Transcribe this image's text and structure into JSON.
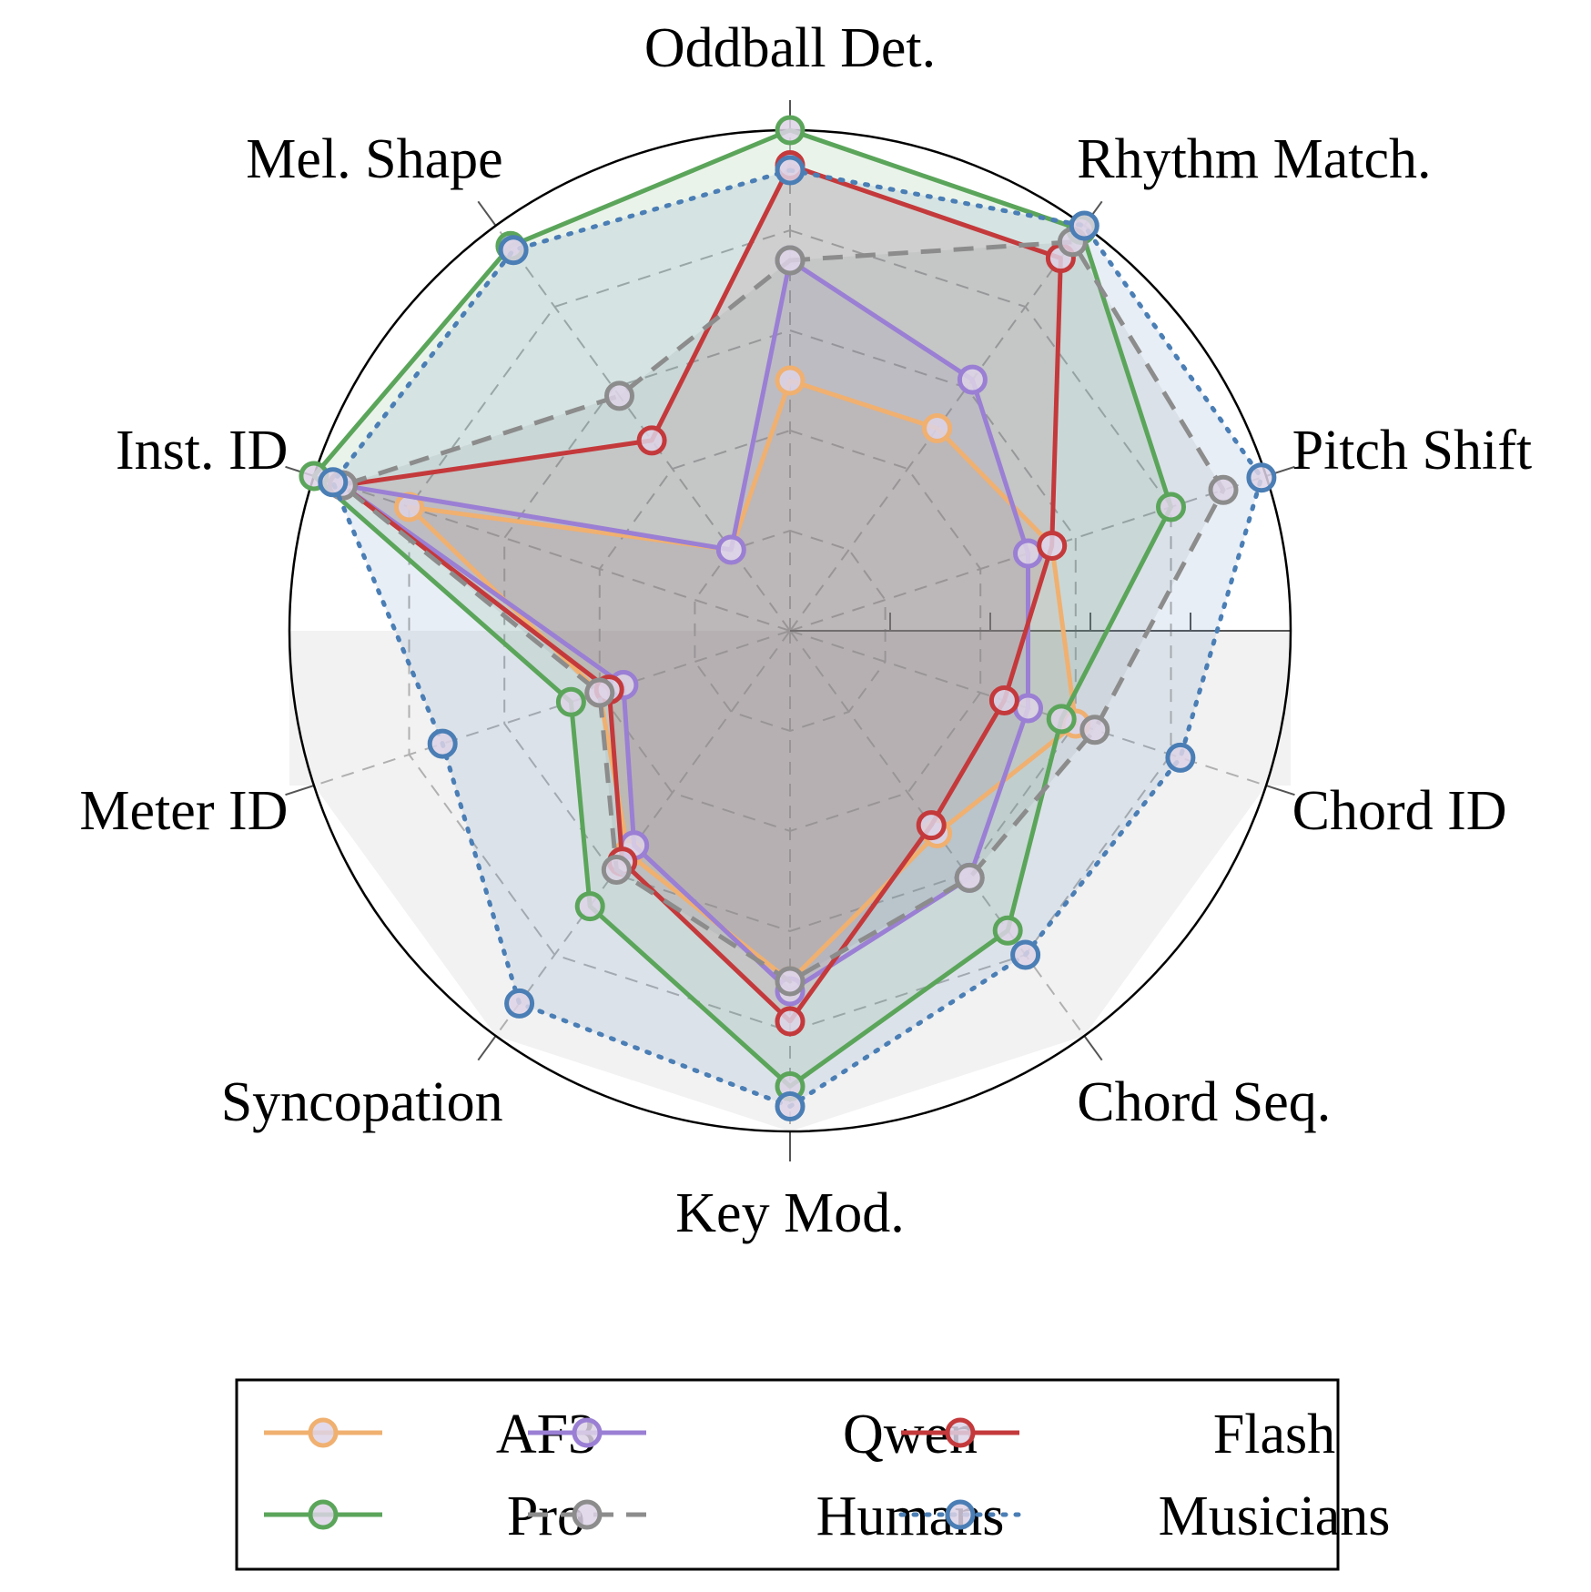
{
  "chart_data": {
    "type": "radar",
    "categories": [
      "Oddball Det.",
      "Rhythm Match.",
      "Pitch Shift",
      "Chord ID",
      "Chord Seq.",
      "Key Mod.",
      "Syncopation",
      "Meter ID",
      "Inst. ID",
      "Mel. Shape"
    ],
    "rlim": [
      0,
      1
    ],
    "grid": true,
    "legend_position": "bottom",
    "series": [
      {
        "name": "AF3",
        "color": "#f0b070",
        "line_style": "solid",
        "values": [
          0.5,
          0.5,
          0.55,
          0.6,
          0.5,
          0.7,
          0.55,
          0.4,
          0.8,
          0.2
        ]
      },
      {
        "name": "Qwen",
        "color": "#9a7fd4",
        "line_style": "solid",
        "values": [
          0.74,
          0.62,
          0.5,
          0.5,
          0.61,
          0.72,
          0.53,
          0.35,
          0.94,
          0.2
        ]
      },
      {
        "name": "Flash",
        "color": "#c4393b",
        "line_style": "solid",
        "values": [
          0.93,
          0.92,
          0.55,
          0.45,
          0.48,
          0.78,
          0.57,
          0.38,
          0.94,
          0.47
        ]
      },
      {
        "name": "Pro",
        "color": "#5ba55b",
        "line_style": "solid",
        "values": [
          1.0,
          0.99,
          0.8,
          0.57,
          0.74,
          0.91,
          0.68,
          0.46,
          1.0,
          0.95
        ]
      },
      {
        "name": "Humans",
        "color": "#8c8c8c",
        "line_style": "dashed",
        "values": [
          0.74,
          0.96,
          0.91,
          0.64,
          0.61,
          0.7,
          0.59,
          0.4,
          0.94,
          0.58
        ]
      },
      {
        "name": "Musicians",
        "color": "#4a7eb5",
        "line_style": "dotted",
        "values": [
          0.92,
          1.0,
          0.99,
          0.82,
          0.8,
          0.95,
          0.92,
          0.73,
          0.96,
          0.94
        ]
      }
    ]
  }
}
